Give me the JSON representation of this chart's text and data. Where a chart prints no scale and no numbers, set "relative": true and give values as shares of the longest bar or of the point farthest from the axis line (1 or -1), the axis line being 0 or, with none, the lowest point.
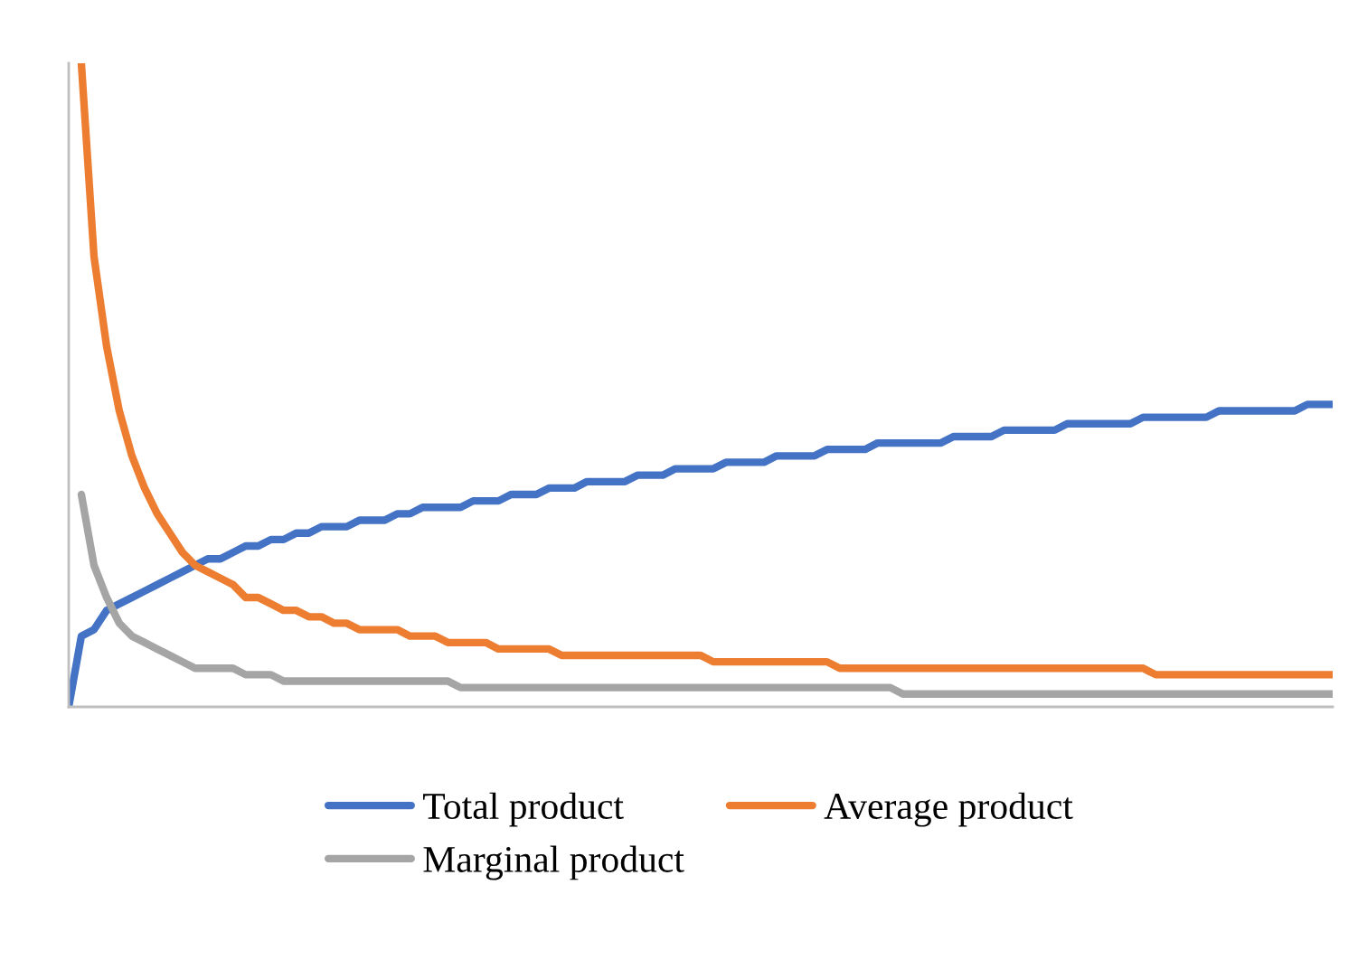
{
  "chart_data": {
    "type": "line",
    "relative": true,
    "legend": "bottom",
    "marker": "none",
    "line_style": "solid",
    "categories": [
      null,
      null,
      null,
      null,
      null,
      null,
      null,
      null,
      null,
      null,
      null,
      null,
      null,
      null,
      null,
      null,
      null,
      null,
      null,
      null,
      null,
      null,
      null,
      null,
      null,
      null,
      null,
      null,
      null,
      null,
      null,
      null,
      null,
      null,
      null,
      null,
      null,
      null,
      null,
      null,
      null,
      null,
      null,
      null,
      null,
      null,
      null,
      null,
      null,
      null,
      null,
      null,
      null,
      null,
      null,
      null,
      null,
      null,
      null,
      null,
      null,
      null,
      null,
      null,
      null,
      null,
      null,
      null,
      null,
      null,
      null,
      null,
      null,
      null,
      null,
      null,
      null,
      null,
      null,
      null,
      null,
      null,
      null,
      null,
      null,
      null,
      null,
      null,
      null,
      null,
      null,
      null,
      null,
      null,
      null,
      null,
      null,
      null,
      null,
      null,
      null
    ],
    "series": [
      {
        "name": "Total product",
        "color": "#4472c4",
        "values": [
          0,
          0.11,
          0.12,
          0.15,
          0.16,
          0.17,
          0.18,
          0.19,
          0.2,
          0.21,
          0.22,
          0.23,
          0.23,
          0.24,
          0.25,
          0.25,
          0.26,
          0.26,
          0.27,
          0.27,
          0.28,
          0.28,
          0.28,
          0.29,
          0.29,
          0.29,
          0.3,
          0.3,
          0.31,
          0.31,
          0.31,
          0.31,
          0.32,
          0.32,
          0.32,
          0.33,
          0.33,
          0.33,
          0.34,
          0.34,
          0.34,
          0.35,
          0.35,
          0.35,
          0.35,
          0.36,
          0.36,
          0.36,
          0.37,
          0.37,
          0.37,
          0.37,
          0.38,
          0.38,
          0.38,
          0.38,
          0.39,
          0.39,
          0.39,
          0.39,
          0.4,
          0.4,
          0.4,
          0.4,
          0.41,
          0.41,
          0.41,
          0.41,
          0.41,
          0.41,
          0.42,
          0.42,
          0.42,
          0.42,
          0.43,
          0.43,
          0.43,
          0.43,
          0.43,
          0.44,
          0.44,
          0.44,
          0.44,
          0.44,
          0.44,
          0.45,
          0.45,
          0.45,
          0.45,
          0.45,
          0.45,
          0.46,
          0.46,
          0.46,
          0.46,
          0.46,
          0.46,
          0.46,
          0.47,
          0.47,
          0.47
        ]
      },
      {
        "name": "Average product",
        "color": "#ed7d31",
        "values": [
          null,
          1.0,
          0.7,
          0.56,
          0.46,
          0.39,
          0.34,
          0.3,
          0.27,
          0.24,
          0.22,
          0.21,
          0.2,
          0.19,
          0.17,
          0.17,
          0.16,
          0.15,
          0.15,
          0.14,
          0.14,
          0.13,
          0.13,
          0.12,
          0.12,
          0.12,
          0.12,
          0.11,
          0.11,
          0.11,
          0.1,
          0.1,
          0.1,
          0.1,
          0.09,
          0.09,
          0.09,
          0.09,
          0.09,
          0.08,
          0.08,
          0.08,
          0.08,
          0.08,
          0.08,
          0.08,
          0.08,
          0.08,
          0.08,
          0.08,
          0.08,
          0.07,
          0.07,
          0.07,
          0.07,
          0.07,
          0.07,
          0.07,
          0.07,
          0.07,
          0.07,
          0.06,
          0.06,
          0.06,
          0.06,
          0.06,
          0.06,
          0.06,
          0.06,
          0.06,
          0.06,
          0.06,
          0.06,
          0.06,
          0.06,
          0.06,
          0.06,
          0.06,
          0.06,
          0.06,
          0.06,
          0.06,
          0.06,
          0.06,
          0.06,
          0.06,
          0.05,
          0.05,
          0.05,
          0.05,
          0.05,
          0.05,
          0.05,
          0.05,
          0.05,
          0.05,
          0.05,
          0.05,
          0.05,
          0.05,
          0.05
        ]
      },
      {
        "name": "Marginal product",
        "color": "#a5a5a5",
        "values": [
          null,
          0.33,
          0.22,
          0.17,
          0.13,
          0.11,
          0.1,
          0.09,
          0.08,
          0.07,
          0.06,
          0.06,
          0.06,
          0.06,
          0.05,
          0.05,
          0.05,
          0.04,
          0.04,
          0.04,
          0.04,
          0.04,
          0.04,
          0.04,
          0.04,
          0.04,
          0.04,
          0.04,
          0.04,
          0.04,
          0.04,
          0.03,
          0.03,
          0.03,
          0.03,
          0.03,
          0.03,
          0.03,
          0.03,
          0.03,
          0.03,
          0.03,
          0.03,
          0.03,
          0.03,
          0.03,
          0.03,
          0.03,
          0.03,
          0.03,
          0.03,
          0.03,
          0.03,
          0.03,
          0.03,
          0.03,
          0.03,
          0.03,
          0.03,
          0.03,
          0.03,
          0.03,
          0.03,
          0.03,
          0.03,
          0.03,
          0.02,
          0.02,
          0.02,
          0.02,
          0.02,
          0.02,
          0.02,
          0.02,
          0.02,
          0.02,
          0.02,
          0.02,
          0.02,
          0.02,
          0.02,
          0.02,
          0.02,
          0.02,
          0.02,
          0.02,
          0.02,
          0.02,
          0.02,
          0.02,
          0.02,
          0.02,
          0.02,
          0.02,
          0.02,
          0.02,
          0.02,
          0.02,
          0.02,
          0.02,
          0.02
        ]
      }
    ]
  }
}
